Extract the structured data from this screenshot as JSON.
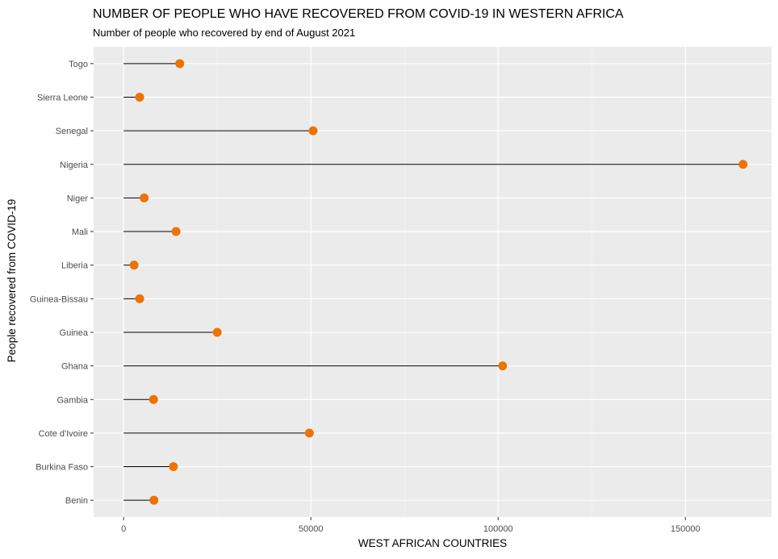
{
  "chart_data": {
    "type": "scatter",
    "style": "lollipop",
    "title": "NUMBER OF PEOPLE WHO HAVE RECOVERED FROM COVID-19 IN WESTERN AFRICA",
    "subtitle": "Number of people who recovered by end of August 2021",
    "xlabel": "WEST AFRICAN COUNTRIES",
    "ylabel": "People recovered from COVID-19",
    "xlim": [
      -8000,
      173000
    ],
    "x_ticks": [
      0,
      50000,
      100000,
      150000
    ],
    "x_tick_labels": [
      "0",
      "50000",
      "100000",
      "150000"
    ],
    "categories": [
      "Benin",
      "Burkina Faso",
      "Cote d'Ivoire",
      "Gambia",
      "Ghana",
      "Guinea",
      "Guinea-Bissau",
      "Liberia",
      "Mali",
      "Niger",
      "Nigeria",
      "Senegal",
      "Sierra Leone",
      "Togo"
    ],
    "values": [
      8100,
      13300,
      49600,
      8000,
      101200,
      25000,
      4300,
      2800,
      14000,
      5500,
      165400,
      50600,
      4300,
      15000
    ],
    "grid": true,
    "legend": "none",
    "colors": {
      "panel": "#ebebeb",
      "grid_major": "#ffffff",
      "grid_minor": "#f5f5f5",
      "point": "#ee7203",
      "stem": "#000000"
    }
  }
}
